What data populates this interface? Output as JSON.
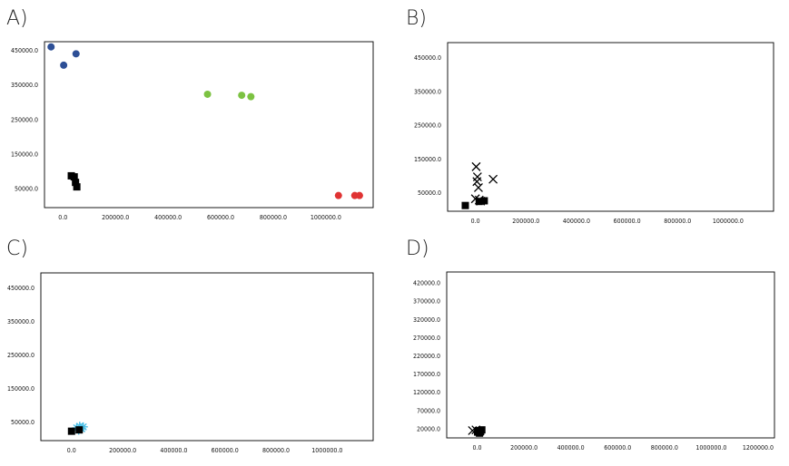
{
  "chart_data": [
    {
      "panel": "A)",
      "type": "scatter",
      "xlim": [
        -70000,
        1180000
      ],
      "ylim": [
        -5000,
        475000
      ],
      "x_ticks": [
        0,
        200000,
        400000,
        600000,
        800000,
        1000000
      ],
      "x_tick_labels": [
        "0.0",
        "200000.0",
        "400000.0",
        "600000.0",
        "800000.0",
        "1000000.0"
      ],
      "y_ticks": [
        50000,
        150000,
        250000,
        350000,
        450000
      ],
      "y_tick_labels": [
        "50000.0",
        "150000.0",
        "250000.0",
        "350000.0",
        "450000.0"
      ],
      "series": [
        {
          "marker": "circle",
          "color": "#2d4f96",
          "x": [
            -45000,
            3000,
            50000
          ],
          "y": [
            460000,
            407000,
            440000
          ]
        },
        {
          "marker": "circle",
          "color": "#7cc242",
          "x": [
            550000,
            680000,
            715000
          ],
          "y": [
            323000,
            320000,
            316000
          ]
        },
        {
          "marker": "square",
          "color": "#000000",
          "x": [
            32000,
            43000,
            48000,
            53000
          ],
          "y": [
            87000,
            84000,
            68000,
            55000
          ]
        },
        {
          "marker": "circle",
          "color": "#e03333",
          "x": [
            1048000,
            1110000,
            1128000
          ],
          "y": [
            30000,
            30000,
            30000
          ]
        }
      ]
    },
    {
      "panel": "B)",
      "type": "scatter",
      "xlim": [
        -110000,
        1180000
      ],
      "ylim": [
        -5000,
        495000
      ],
      "x_ticks": [
        0,
        200000,
        400000,
        600000,
        800000,
        1000000
      ],
      "x_tick_labels": [
        "0.0",
        "200000.0",
        "400000.0",
        "600000.0",
        "800000.0",
        "1000000.0"
      ],
      "y_ticks": [
        50000,
        150000,
        250000,
        350000,
        450000
      ],
      "y_tick_labels": [
        "50000.0",
        "150000.0",
        "250000.0",
        "350000.0",
        "450000.0"
      ],
      "series": [
        {
          "marker": "x",
          "color": "#000000",
          "x": [
            3000,
            8000,
            6000,
            12000,
            70000,
            0,
            15000,
            20000
          ],
          "y": [
            127000,
            97000,
            83000,
            65000,
            90000,
            32000,
            28000,
            25000
          ]
        },
        {
          "marker": "square",
          "color": "#000000",
          "x": [
            -40000,
            15000,
            35000
          ],
          "y": [
            12000,
            24000,
            26000
          ]
        }
      ]
    },
    {
      "panel": "C)",
      "type": "scatter",
      "xlim": [
        -120000,
        1180000
      ],
      "ylim": [
        -5000,
        495000
      ],
      "x_ticks": [
        0,
        200000,
        400000,
        600000,
        800000,
        1000000
      ],
      "x_tick_labels": [
        "0.0",
        "200000.0",
        "400000.0",
        "600000.0",
        "800000.0",
        "1000000.0"
      ],
      "y_ticks": [
        50000,
        150000,
        250000,
        350000,
        450000
      ],
      "y_tick_labels": [
        "50000.0",
        "150000.0",
        "250000.0",
        "350000.0",
        "450000.0"
      ],
      "series": [
        {
          "marker": "star",
          "color": "#4bbfe6",
          "x": [
            20000,
            32000,
            40000,
            28000,
            46000
          ],
          "y": [
            33000,
            38000,
            30000,
            26000,
            36000
          ]
        },
        {
          "marker": "square",
          "color": "#000000",
          "x": [
            0,
            30000
          ],
          "y": [
            23000,
            27000
          ]
        }
      ]
    },
    {
      "panel": "D)",
      "type": "scatter",
      "xlim": [
        -130000,
        1270000
      ],
      "ylim": [
        -5000,
        450000
      ],
      "x_ticks": [
        0,
        200000,
        400000,
        600000,
        800000,
        1000000,
        1200000
      ],
      "x_tick_labels": [
        "0.0",
        "200000.0",
        "400000.0",
        "600000.0",
        "800000.0",
        "1000000.0",
        "1200000.0"
      ],
      "y_ticks": [
        20000,
        70000,
        120000,
        170000,
        220000,
        270000,
        320000,
        370000,
        420000
      ],
      "y_tick_labels": [
        "20000.0",
        "70000.0",
        "120000.0",
        "170000.0",
        "220000.0",
        "270000.0",
        "320000.0",
        "370000.0",
        "420000.0"
      ],
      "series": [
        {
          "marker": "x",
          "color": "#000000",
          "x": [
            -20000,
            -5000,
            10000
          ],
          "y": [
            15000,
            17000,
            13000
          ]
        },
        {
          "marker": "square",
          "color": "#000000",
          "x": [
            5000,
            15000,
            10000,
            20000,
            2000
          ],
          "y": [
            15000,
            13000,
            8000,
            17000,
            11000
          ]
        }
      ]
    }
  ]
}
